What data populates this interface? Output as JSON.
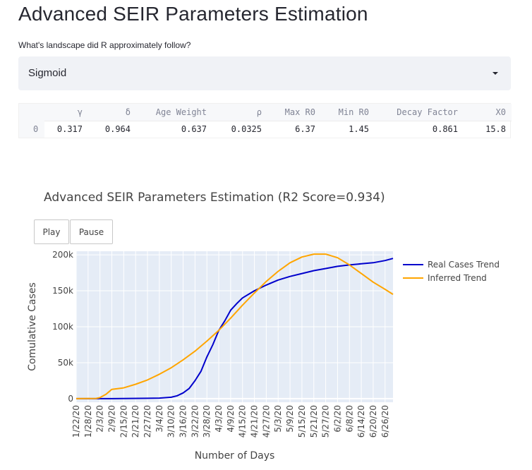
{
  "page": {
    "title": "Advanced SEIR Parameters Estimation"
  },
  "selector": {
    "label": "What's landscape did R approximately follow?",
    "value": "Sigmoid"
  },
  "table": {
    "columns": [
      "",
      "γ",
      "δ",
      "Age Weight",
      "ρ",
      "Max R0",
      "Min R0",
      "Decay Factor",
      "X0"
    ],
    "rows": [
      [
        "0",
        "0.317",
        "0.964",
        "0.637",
        "0.0325",
        "6.37",
        "1.45",
        "0.861",
        "15.8"
      ]
    ]
  },
  "controls": {
    "play_label": "Play",
    "pause_label": "Pause"
  },
  "chart_data": {
    "type": "line",
    "title": "Advanced SEIR Parameters Estimation (R2 Score=0.934)",
    "xlabel": "Number of Days",
    "ylabel": "Comulative Cases",
    "ylim": [
      -5000,
      205000
    ],
    "yticks": [
      0,
      50000,
      100000,
      150000,
      200000
    ],
    "ytick_labels": [
      "0",
      "50k",
      "100k",
      "150k",
      "200k"
    ],
    "xticks": [
      "1/22/20",
      "1/28/20",
      "2/3/20",
      "2/9/20",
      "2/15/20",
      "2/21/20",
      "2/27/20",
      "3/4/20",
      "3/10/20",
      "3/16/20",
      "3/22/20",
      "3/28/20",
      "4/3/20",
      "4/9/20",
      "4/15/20",
      "4/21/20",
      "4/27/20",
      "5/3/20",
      "5/9/20",
      "5/15/20",
      "5/21/20",
      "5/27/20",
      "6/2/20",
      "6/8/20",
      "6/14/20",
      "6/20/20",
      "6/26/20"
    ],
    "x_start": "1/22/20",
    "x_end": "6/30/20",
    "grid": true,
    "legend_position": "right",
    "colors": {
      "plot_bg": "#e5ecf6",
      "grid": "#ffffff",
      "real": "#0000cc",
      "inferred": "#ffa500"
    },
    "series": [
      {
        "name": "Real Cases Trend",
        "color": "#0000cc",
        "x": [
          "1/22/20",
          "2/9/20",
          "2/27/20",
          "3/4/20",
          "3/10/20",
          "3/13/20",
          "3/16/20",
          "3/19/20",
          "3/22/20",
          "3/25/20",
          "3/28/20",
          "3/31/20",
          "4/3/20",
          "4/6/20",
          "4/9/20",
          "4/12/20",
          "4/15/20",
          "4/21/20",
          "4/27/20",
          "5/3/20",
          "5/9/20",
          "5/15/20",
          "5/21/20",
          "5/27/20",
          "6/2/20",
          "6/8/20",
          "6/14/20",
          "6/20/20",
          "6/26/20",
          "6/30/20"
        ],
        "y": [
          0,
          0,
          500,
          800,
          2000,
          4000,
          8000,
          14000,
          25000,
          38000,
          58000,
          75000,
          95000,
          108000,
          123000,
          132000,
          140000,
          150000,
          158000,
          165000,
          170000,
          174000,
          178000,
          181000,
          184000,
          186000,
          187500,
          189000,
          192000,
          195000
        ]
      },
      {
        "name": "Inferred Trend",
        "color": "#ffa500",
        "x": [
          "1/22/20",
          "2/1/20",
          "2/3/20",
          "2/6/20",
          "2/9/20",
          "2/15/20",
          "2/21/20",
          "2/27/20",
          "3/4/20",
          "3/10/20",
          "3/16/20",
          "3/22/20",
          "3/28/20",
          "4/3/20",
          "4/9/20",
          "4/15/20",
          "4/21/20",
          "4/27/20",
          "5/3/20",
          "5/9/20",
          "5/15/20",
          "5/21/20",
          "5/27/20",
          "6/2/20",
          "6/8/20",
          "6/14/20",
          "6/20/20",
          "6/26/20",
          "6/30/20"
        ],
        "y": [
          0,
          300,
          1500,
          6000,
          13000,
          15000,
          20000,
          26000,
          34000,
          43000,
          54000,
          66000,
          80000,
          95000,
          112000,
          130000,
          147000,
          163000,
          177000,
          189000,
          197000,
          201000,
          201000,
          196000,
          186000,
          174000,
          162000,
          152000,
          145000
        ]
      }
    ]
  }
}
